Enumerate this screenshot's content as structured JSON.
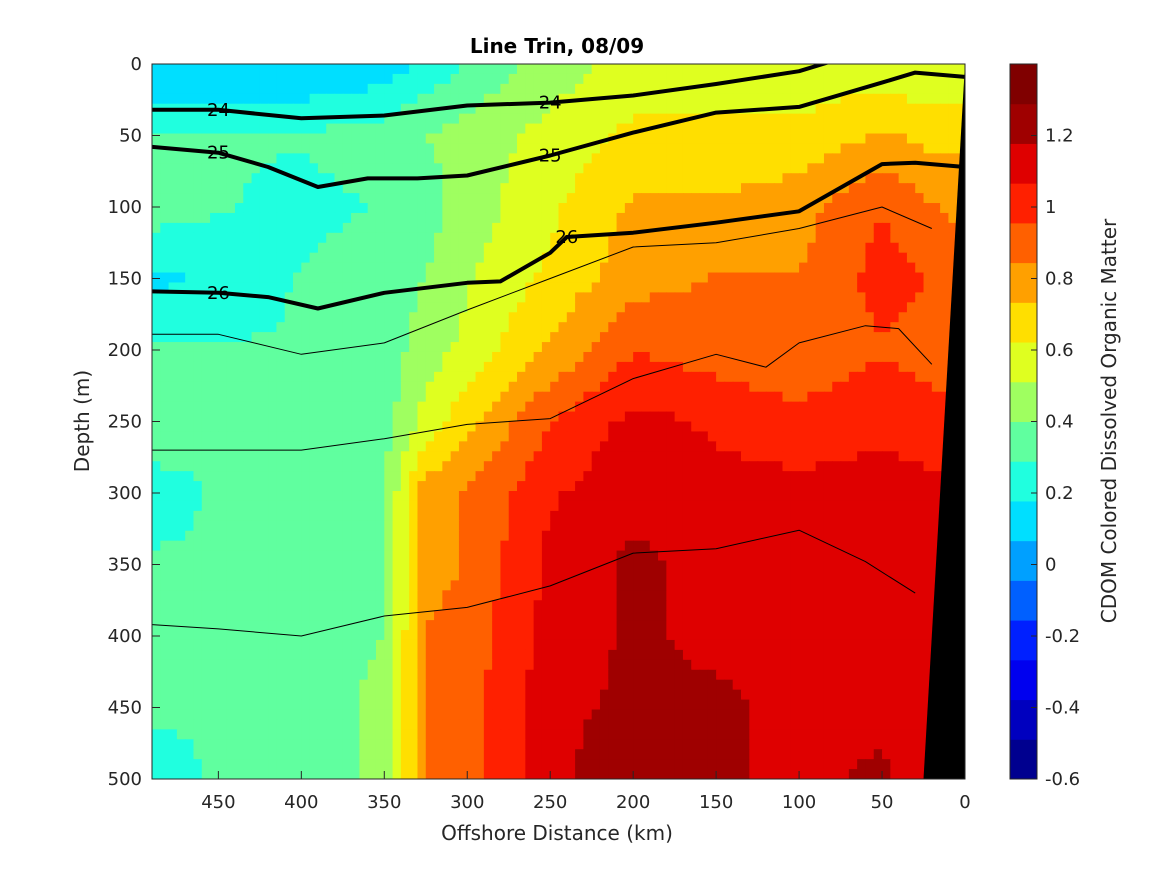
{
  "chart_data": {
    "type": "heatmap",
    "title": "Line Trin, 08/09",
    "xlabel": "Offshore Distance (km)",
    "ylabel": "Depth (m)",
    "colorbar_label": "CDOM Colored Dissolved Organic Matter",
    "xlim": [
      490,
      0
    ],
    "ylim": [
      500,
      0
    ],
    "clim": [
      -0.6,
      1.4
    ],
    "x_ticks": [
      450,
      400,
      350,
      300,
      250,
      200,
      150,
      100,
      50,
      0
    ],
    "y_ticks": [
      0,
      50,
      100,
      150,
      200,
      250,
      300,
      350,
      400,
      450,
      500
    ],
    "colorbar_ticks": [
      -0.6,
      -0.4,
      -0.2,
      0,
      0.2,
      0.4,
      0.6,
      0.8,
      1,
      1.2
    ],
    "colorbar_tick_labels": [
      "-0.6",
      "-0.4",
      "-0.2",
      "0",
      "0.2",
      "0.4",
      "0.6",
      "0.8",
      "1",
      "1.2"
    ],
    "colormap": [
      "#00008f",
      "#0000bf",
      "#0000ef",
      "#0020ff",
      "#0060ff",
      "#00a0ff",
      "#00dfff",
      "#20ffdf",
      "#60ff9f",
      "#9fff60",
      "#dfff20",
      "#ffdf00",
      "#ffa000",
      "#ff6000",
      "#ff2000",
      "#df0000",
      "#9f0000",
      "#800000"
    ],
    "grid": false,
    "field_description_series": [
      {
        "name": "CDOM",
        "depths": [
          0,
          50,
          100,
          150,
          200,
          250,
          300,
          350,
          400,
          450,
          500
        ],
        "distances": [
          490,
          450,
          400,
          350,
          325,
          300,
          250,
          200,
          150,
          100,
          50,
          20,
          0
        ],
        "values": [
          [
            0.05,
            0.05,
            0.05,
            0.1,
            0.2,
            0.3,
            0.45,
            0.55,
            0.55,
            0.55,
            0.55,
            0.5,
            0.5
          ],
          [
            0.3,
            0.3,
            0.3,
            0.35,
            0.4,
            0.45,
            0.55,
            0.65,
            0.65,
            0.65,
            0.75,
            0.7,
            0.7
          ],
          [
            0.35,
            0.3,
            0.25,
            0.3,
            0.35,
            0.45,
            0.6,
            0.75,
            0.75,
            0.8,
            0.95,
            0.85,
            0.8
          ],
          [
            0.15,
            0.2,
            0.3,
            0.35,
            0.4,
            0.5,
            0.65,
            0.8,
            0.85,
            0.85,
            1.0,
            0.95,
            0.9
          ],
          [
            0.3,
            0.3,
            0.3,
            0.35,
            0.45,
            0.55,
            0.75,
            0.95,
            0.9,
            0.85,
            0.95,
            0.9,
            0.9
          ],
          [
            0.35,
            0.3,
            0.3,
            0.35,
            0.55,
            0.7,
            0.95,
            1.1,
            1.05,
            1.0,
            1.05,
            1.0,
            1.0
          ],
          [
            0.25,
            0.3,
            0.3,
            0.4,
            0.8,
            0.85,
            1.05,
            1.15,
            1.1,
            1.1,
            1.1,
            1.1,
            1.1
          ],
          [
            0.3,
            0.3,
            0.3,
            0.4,
            0.8,
            0.85,
            1.1,
            1.2,
            1.15,
            1.15,
            1.15,
            1.1,
            1.1
          ],
          [
            0.3,
            0.3,
            0.3,
            0.4,
            0.85,
            0.9,
            1.1,
            1.2,
            1.15,
            1.15,
            1.1,
            1.1,
            1.1
          ],
          [
            0.3,
            0.3,
            0.3,
            0.45,
            0.85,
            0.9,
            1.15,
            1.2,
            1.2,
            1.15,
            1.15,
            1.1,
            1.1
          ],
          [
            0.25,
            0.3,
            0.3,
            0.45,
            0.85,
            0.9,
            1.15,
            1.25,
            1.2,
            1.15,
            1.2,
            1.1,
            1.1
          ]
        ]
      }
    ],
    "isopycnals": [
      {
        "label": "24",
        "bold": true,
        "points": [
          [
            490,
            32
          ],
          [
            450,
            32
          ],
          [
            400,
            38
          ],
          [
            350,
            36
          ],
          [
            300,
            29
          ],
          [
            250,
            27
          ],
          [
            200,
            22
          ],
          [
            150,
            14
          ],
          [
            100,
            5
          ],
          [
            80,
            -2
          ]
        ]
      },
      {
        "label": "25",
        "bold": true,
        "points": [
          [
            490,
            58
          ],
          [
            450,
            62
          ],
          [
            420,
            72
          ],
          [
            390,
            86
          ],
          [
            360,
            80
          ],
          [
            330,
            80
          ],
          [
            300,
            78
          ],
          [
            250,
            64
          ],
          [
            200,
            48
          ],
          [
            150,
            34
          ],
          [
            100,
            30
          ],
          [
            50,
            13
          ],
          [
            30,
            6
          ],
          [
            0,
            9
          ]
        ]
      },
      {
        "label": "26",
        "bold": true,
        "points": [
          [
            490,
            159
          ],
          [
            450,
            160
          ],
          [
            420,
            163
          ],
          [
            390,
            171
          ],
          [
            350,
            160
          ],
          [
            300,
            153
          ],
          [
            280,
            152
          ],
          [
            250,
            132
          ],
          [
            240,
            121
          ],
          [
            200,
            118
          ],
          [
            150,
            111
          ],
          [
            100,
            103
          ],
          [
            50,
            70
          ],
          [
            30,
            69
          ],
          [
            0,
            72
          ]
        ]
      },
      {
        "label": "",
        "bold": false,
        "points": [
          [
            490,
            189
          ],
          [
            450,
            189
          ],
          [
            400,
            203
          ],
          [
            350,
            195
          ],
          [
            300,
            172
          ],
          [
            250,
            150
          ],
          [
            200,
            128
          ],
          [
            150,
            125
          ],
          [
            100,
            115
          ],
          [
            50,
            100
          ],
          [
            20,
            115
          ]
        ]
      },
      {
        "label": "",
        "bold": false,
        "points": [
          [
            490,
            270
          ],
          [
            400,
            270
          ],
          [
            350,
            262
          ],
          [
            300,
            252
          ],
          [
            250,
            248
          ],
          [
            200,
            220
          ],
          [
            150,
            203
          ],
          [
            120,
            212
          ],
          [
            100,
            195
          ],
          [
            60,
            183
          ],
          [
            40,
            185
          ],
          [
            20,
            210
          ]
        ]
      },
      {
        "label": "",
        "bold": false,
        "points": [
          [
            490,
            392
          ],
          [
            450,
            395
          ],
          [
            400,
            400
          ],
          [
            350,
            386
          ],
          [
            300,
            380
          ],
          [
            250,
            365
          ],
          [
            200,
            342
          ],
          [
            150,
            339
          ],
          [
            100,
            326
          ],
          [
            60,
            348
          ],
          [
            30,
            370
          ]
        ]
      }
    ],
    "coastline_points": [
      [
        0,
        0
      ],
      [
        0,
        500
      ],
      [
        25,
        500
      ],
      [
        0,
        0
      ]
    ]
  }
}
